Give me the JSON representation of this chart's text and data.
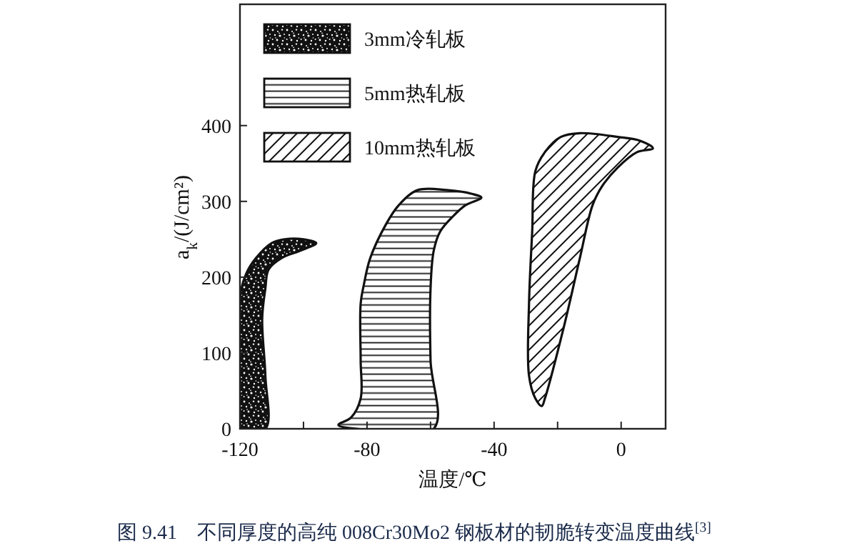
{
  "chart_data": {
    "type": "area",
    "xlabel": "温度/℃",
    "ylabel": "a$_{k}$/(J/cm²)",
    "annotations": [
      "图 9.41　不同厚度的高纯 008Cr30Mo2 钢板材的韧脆转变温度曲线$^{[3]}$"
    ],
    "xlim": [
      -120,
      14
    ],
    "ylim": [
      0,
      560
    ],
    "xticks": [
      -120,
      {
        "value": -100,
        "label": null
      },
      -80,
      {
        "value": -60,
        "label": null
      },
      -40,
      {
        "value": -20,
        "label": null
      },
      0
    ],
    "yticks": [
      0,
      100,
      200,
      300,
      400
    ],
    "legend": "top left",
    "series": [
      {
        "name": "3mm冷轧板",
        "color": "#111111",
        "x": [
          -120,
          -120,
          -118,
          -115,
          -110,
          -106,
          -100,
          -96,
          -101,
          -107,
          -111,
          -112,
          -113,
          -112,
          -112
        ],
        "values": [
          0,
          175,
          205,
          225,
          245,
          250,
          250,
          245,
          235,
          225,
          210,
          185,
          145,
          70,
          0
        ]
      },
      {
        "name": "5mm热轧板",
        "color": "#111111",
        "x": [
          -89,
          -85,
          -82,
          -82,
          -82,
          -81,
          -79,
          -74,
          -70,
          -64,
          -55,
          -47,
          -44,
          -49,
          -53,
          -57,
          -59,
          -60,
          -60,
          -59,
          -83
        ],
        "values": [
          5,
          15,
          40,
          90,
          165,
          190,
          225,
          270,
          295,
          315,
          315,
          310,
          305,
          295,
          280,
          260,
          235,
          185,
          90,
          0,
          0
        ]
      },
      {
        "name": "10mm热轧板",
        "color": "#111111",
        "x": [
          -25,
          -27,
          -29,
          -29,
          -28,
          -27,
          -24,
          -19,
          -13,
          -1,
          6,
          10,
          5,
          -1,
          -6,
          -9,
          -13,
          -18,
          -24
        ],
        "values": [
          30,
          40,
          70,
          165,
          260,
          340,
          365,
          385,
          390,
          385,
          380,
          370,
          365,
          345,
          320,
          295,
          225,
          135,
          40
        ]
      }
    ]
  }
}
